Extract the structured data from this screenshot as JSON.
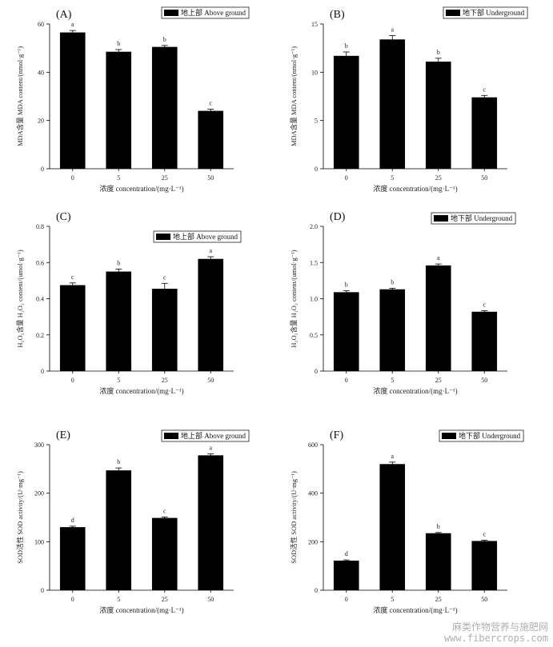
{
  "chart_data": [
    {
      "type": "bar",
      "panel_label": "(A)",
      "legend": "地上部 Above ground",
      "categories": [
        "0",
        "5",
        "25",
        "50"
      ],
      "values": [
        56.5,
        48.5,
        50.5,
        24.0
      ],
      "errors": [
        0.8,
        0.9,
        0.6,
        0.7
      ],
      "significance": [
        "a",
        "b",
        "b",
        "c"
      ],
      "ylim": [
        0,
        60
      ],
      "yticks": [
        "0",
        "20",
        "40",
        "60"
      ],
      "ylabel": "MDA含量 MDA content/(nmol·g⁻¹)",
      "xlabel": "浓度 concentration/(mg·L⁻¹)"
    },
    {
      "type": "bar",
      "panel_label": "(B)",
      "legend": "地下部 Underground",
      "categories": [
        "0",
        "5",
        "25",
        "50"
      ],
      "values": [
        11.7,
        13.4,
        11.1,
        7.4
      ],
      "errors": [
        0.4,
        0.4,
        0.35,
        0.2
      ],
      "significance": [
        "b",
        "a",
        "b",
        "c"
      ],
      "ylim": [
        0,
        15
      ],
      "yticks": [
        "0",
        "5",
        "10",
        "15"
      ],
      "ylabel": "MDA含量 MDA content/(nmol·g⁻¹)",
      "xlabel": "浓度 concentration/(mg·L⁻¹)"
    },
    {
      "type": "bar",
      "panel_label": "(C)",
      "legend": "地上部 Above ground",
      "categories": [
        "0",
        "5",
        "25",
        "50"
      ],
      "values": [
        0.475,
        0.55,
        0.455,
        0.62
      ],
      "errors": [
        0.012,
        0.014,
        0.03,
        0.012
      ],
      "significance": [
        "c",
        "b",
        "c",
        "a"
      ],
      "ylim": [
        0,
        0.8
      ],
      "yticks": [
        "0",
        "0.2",
        "0.4",
        "0.6",
        "0.8"
      ],
      "ylabel": "H₂O₂含量 H₂O₂ content/(umol·g⁻¹)",
      "xlabel": "浓度 concentration/(mg·L⁻¹)"
    },
    {
      "type": "bar",
      "panel_label": "(D)",
      "legend": "地下部 Underground",
      "categories": [
        "0",
        "5",
        "25",
        "50"
      ],
      "values": [
        1.09,
        1.13,
        1.46,
        0.82
      ],
      "errors": [
        0.02,
        0.015,
        0.02,
        0.015
      ],
      "significance": [
        "b",
        "b",
        "a",
        "c"
      ],
      "ylim": [
        0,
        2.0
      ],
      "yticks": [
        "0",
        "0.5",
        "1.0",
        "1.5",
        "2.0"
      ],
      "ylabel": "H₂O₂含量 H₂O₂ content/(umol·g⁻¹)",
      "xlabel": "浓度 concentration/(mg·L⁻¹)"
    },
    {
      "type": "bar",
      "panel_label": "(E)",
      "legend": "地上部 Above ground",
      "categories": [
        "0",
        "5",
        "25",
        "50"
      ],
      "values": [
        130,
        247,
        149,
        278
      ],
      "errors": [
        2,
        5,
        2,
        3
      ],
      "significance": [
        "d",
        "b",
        "c",
        "a"
      ],
      "ylim": [
        0,
        300
      ],
      "yticks": [
        "0",
        "100",
        "200",
        "300"
      ],
      "ylabel": "SOD活性 SOD activity/(U·mg⁻¹)",
      "xlabel": "浓度 concentration/(mg·L⁻¹)"
    },
    {
      "type": "bar",
      "panel_label": "(F)",
      "legend": "地下部 Underground",
      "categories": [
        "0",
        "5",
        "25",
        "50"
      ],
      "values": [
        122,
        520,
        235,
        203
      ],
      "errors": [
        3,
        8,
        3,
        3
      ],
      "significance": [
        "d",
        "a",
        "b",
        "c"
      ],
      "ylim": [
        0,
        600
      ],
      "yticks": [
        "0",
        "200",
        "400",
        "600"
      ],
      "ylabel": "SOD活性 SOD activity/(U·mg⁻¹)",
      "xlabel": "浓度 concentration/(mg·L⁻¹)"
    }
  ],
  "watermark": {
    "line1": "麻类作物营养与施肥网",
    "line2": "www.fibercrops.com"
  },
  "colors": {
    "bar": "#000000",
    "axis": "#000000",
    "text": "#222222"
  }
}
